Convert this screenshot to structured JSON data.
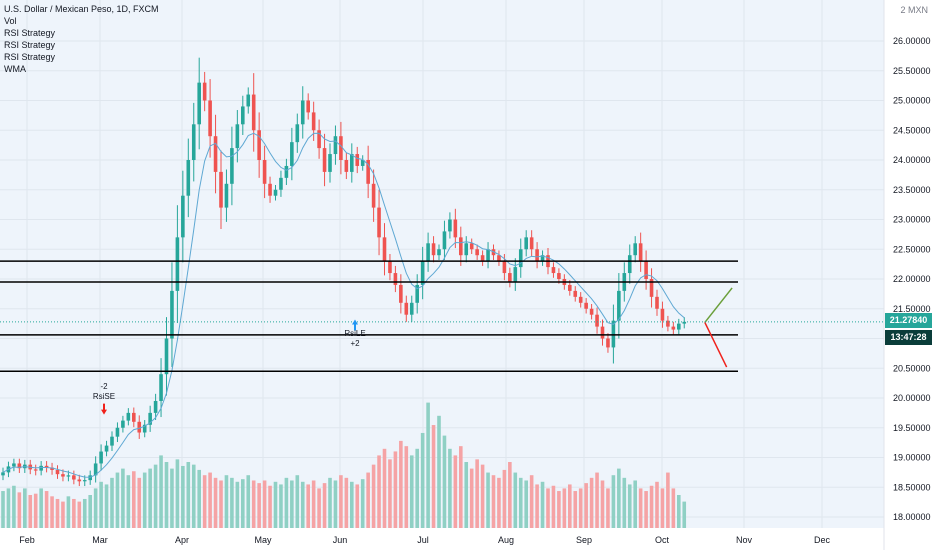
{
  "legend": {
    "title": "U.S. Dollar / Mexican Peso, 1D, FXCM",
    "lines": [
      "Vol",
      "RSI Strategy",
      "RSI Strategy",
      "RSI Strategy",
      "WMA"
    ]
  },
  "corner_label": "2 MXN",
  "last_price": "21.27840",
  "countdown": "13:47:28",
  "markers": {
    "short_top": "-2",
    "short_label": "RsiSE",
    "long_label": "RsiLE",
    "long_bottom": "+2"
  },
  "colors": {
    "background": "#eef4fb",
    "up": "#26a69a",
    "down": "#ef5350",
    "up_volume": "#8fd0c4",
    "down_volume": "#f5a3a5",
    "wma": "#5fa8d3",
    "projection_up": "#6a9f3a",
    "projection_down": "#f0211b",
    "price_tag": "#26a69a",
    "countdown_tag": "#0a3d3a",
    "level": "#000000"
  },
  "chart_data": {
    "type": "candlestick",
    "symbol": "U.S. Dollar / Mexican Peso",
    "interval": "1D",
    "source": "FXCM",
    "y_ticks": [
      "26.00000",
      "25.50000",
      "25.00000",
      "24.50000",
      "24.00000",
      "23.50000",
      "23.00000",
      "22.50000",
      "22.00000",
      "21.50000",
      "21.00000",
      "20.50000",
      "20.00000",
      "19.50000",
      "19.00000",
      "18.50000",
      "18.00000"
    ],
    "x_ticks": [
      "Feb",
      "Mar",
      "Apr",
      "May",
      "Jun",
      "Jul",
      "Aug",
      "Sep",
      "Oct",
      "Nov",
      "Dec"
    ],
    "ylim": [
      17.8,
      26.6
    ],
    "horizontal_levels": [
      22.3,
      21.95,
      21.06,
      20.45
    ],
    "projections": [
      {
        "from": [
          93,
          21.27
        ],
        "to": [
          98,
          21.85
        ],
        "direction": "up"
      },
      {
        "from": [
          93,
          21.27
        ],
        "to": [
          97,
          20.52
        ],
        "direction": "down"
      }
    ],
    "close_series": [
      18.75,
      18.85,
      18.9,
      18.82,
      18.88,
      18.8,
      18.78,
      18.86,
      18.83,
      18.79,
      18.72,
      18.68,
      18.7,
      18.63,
      18.6,
      18.62,
      18.7,
      18.9,
      19.1,
      19.2,
      19.35,
      19.5,
      19.62,
      19.75,
      19.6,
      19.42,
      19.55,
      19.75,
      19.95,
      20.4,
      21.0,
      21.8,
      22.7,
      23.4,
      24.0,
      24.6,
      25.3,
      25.0,
      24.4,
      23.8,
      23.2,
      23.6,
      24.2,
      24.6,
      24.9,
      25.1,
      24.5,
      24.0,
      23.6,
      23.4,
      23.5,
      23.7,
      23.9,
      24.3,
      24.6,
      25.0,
      24.8,
      24.5,
      24.2,
      23.8,
      24.1,
      24.4,
      24.0,
      23.8,
      24.1,
      23.9,
      24.0,
      23.6,
      23.2,
      22.7,
      22.3,
      22.1,
      21.9,
      21.6,
      21.4,
      21.6,
      21.9,
      22.3,
      22.6,
      22.4,
      22.5,
      22.8,
      23.0,
      22.7,
      22.4,
      22.6,
      22.5,
      22.4,
      22.3,
      22.5,
      22.4,
      22.3,
      22.1,
      21.95,
      22.2,
      22.5,
      22.7,
      22.5,
      22.3,
      22.4,
      22.2,
      22.1,
      22.0,
      21.9,
      21.8,
      21.7,
      21.6,
      21.5,
      21.4,
      21.2,
      21.0,
      20.85,
      21.3,
      21.8,
      22.1,
      22.4,
      22.6,
      22.3,
      22.0,
      21.7,
      21.5,
      21.3,
      21.2,
      21.15,
      21.25,
      21.28
    ],
    "volume_series": [
      0.28,
      0.3,
      0.32,
      0.27,
      0.3,
      0.25,
      0.26,
      0.3,
      0.28,
      0.24,
      0.22,
      0.2,
      0.24,
      0.22,
      0.2,
      0.22,
      0.25,
      0.3,
      0.35,
      0.33,
      0.38,
      0.42,
      0.45,
      0.4,
      0.43,
      0.38,
      0.42,
      0.45,
      0.48,
      0.55,
      0.5,
      0.45,
      0.52,
      0.47,
      0.5,
      0.48,
      0.44,
      0.4,
      0.42,
      0.38,
      0.36,
      0.4,
      0.38,
      0.35,
      0.37,
      0.4,
      0.36,
      0.34,
      0.36,
      0.32,
      0.35,
      0.33,
      0.38,
      0.36,
      0.4,
      0.35,
      0.33,
      0.36,
      0.3,
      0.34,
      0.38,
      0.36,
      0.4,
      0.38,
      0.35,
      0.33,
      0.37,
      0.42,
      0.48,
      0.55,
      0.6,
      0.52,
      0.58,
      0.66,
      0.62,
      0.55,
      0.6,
      0.72,
      0.95,
      0.78,
      0.85,
      0.7,
      0.6,
      0.55,
      0.62,
      0.5,
      0.45,
      0.52,
      0.48,
      0.42,
      0.4,
      0.38,
      0.44,
      0.5,
      0.42,
      0.38,
      0.36,
      0.4,
      0.33,
      0.35,
      0.3,
      0.32,
      0.28,
      0.3,
      0.33,
      0.28,
      0.3,
      0.34,
      0.38,
      0.42,
      0.36,
      0.3,
      0.4,
      0.45,
      0.38,
      0.33,
      0.36,
      0.3,
      0.28,
      0.32,
      0.35,
      0.3,
      0.42,
      0.3,
      0.25,
      0.2
    ]
  }
}
